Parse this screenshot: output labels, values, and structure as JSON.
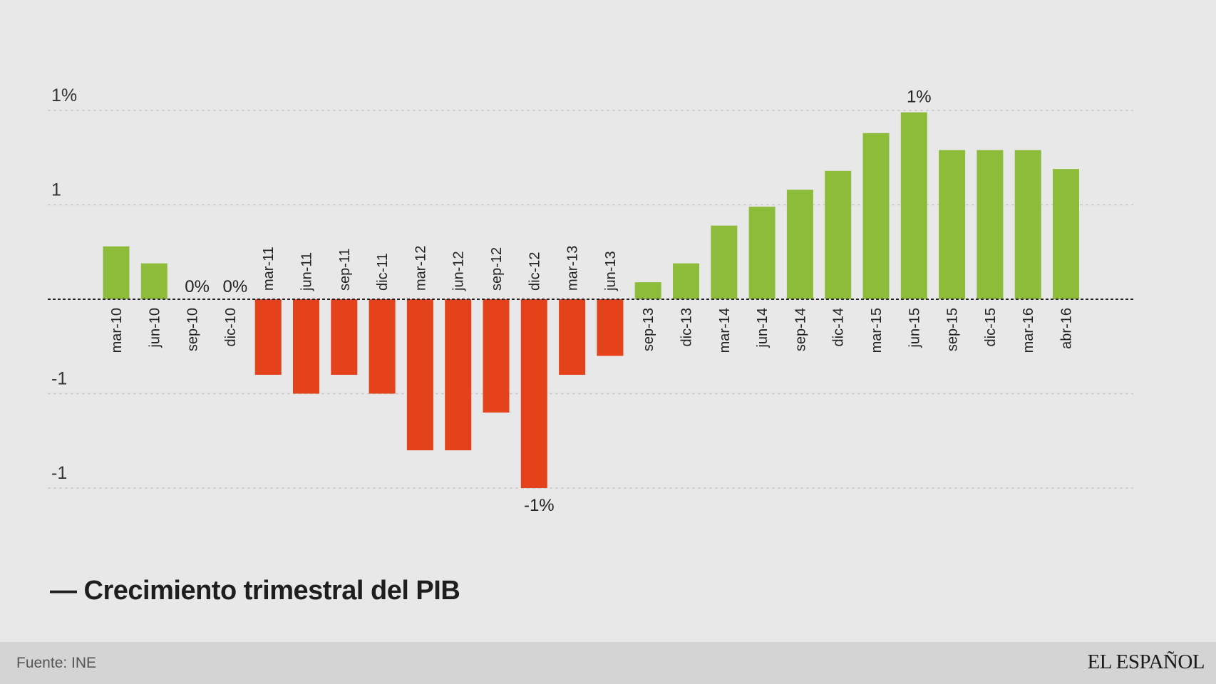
{
  "chart_data": {
    "type": "bar",
    "categories": [
      "mar-10",
      "jun-10",
      "sep-10",
      "dic-10",
      "mar-11",
      "jun-11",
      "sep-11",
      "dic-11",
      "mar-12",
      "jun-12",
      "sep-12",
      "dic-12",
      "mar-13",
      "jun-13",
      "sep-13",
      "dic-13",
      "mar-14",
      "jun-14",
      "sep-14",
      "dic-14",
      "mar-15",
      "jun-15",
      "sep-15",
      "dic-15",
      "mar-16",
      "abr-16"
    ],
    "values": [
      0.28,
      0.19,
      0.0,
      0.0,
      -0.4,
      -0.5,
      -0.4,
      -0.5,
      -0.8,
      -0.8,
      -0.6,
      -1.0,
      -0.4,
      -0.3,
      0.09,
      0.19,
      0.39,
      0.49,
      0.58,
      0.68,
      0.88,
      0.99,
      0.79,
      0.79,
      0.79,
      0.69
    ],
    "ylim": [
      -1.0,
      1.0
    ],
    "y_tick_labels": [
      {
        "value": 1.0,
        "label": "1%"
      },
      {
        "value": 0.5,
        "label": "1"
      },
      {
        "value": -0.5,
        "label": "-1"
      },
      {
        "value": -1.0,
        "label": "-1"
      }
    ],
    "data_labels": [
      {
        "index": 2,
        "label": "0%"
      },
      {
        "index": 3,
        "label": "0%"
      },
      {
        "index": 11,
        "label": "-1%"
      },
      {
        "index": 21,
        "label": "1%"
      }
    ],
    "grid": true,
    "colors": {
      "positive": "#8dbb3a",
      "negative": "#e3421a"
    }
  },
  "legend": {
    "label": "— Crecimiento trimestral del PIB"
  },
  "footer": {
    "source": "Fuente: INE",
    "brand": "EL ESPAÑOL"
  }
}
